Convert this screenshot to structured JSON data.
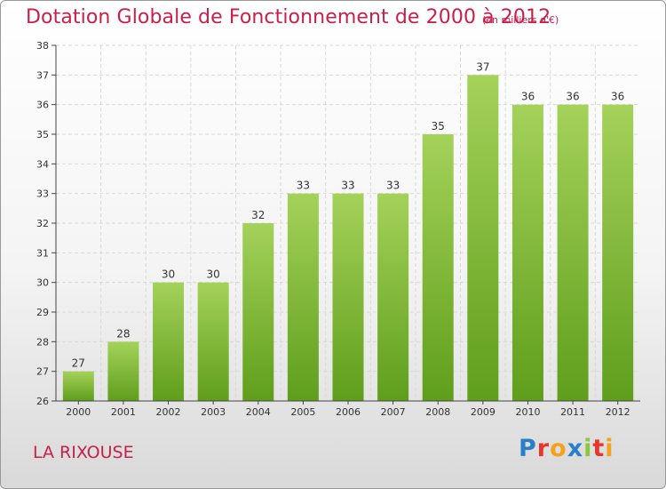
{
  "header": {
    "title": "Dotation Globale de Fonctionnement de 2000 à 2012",
    "subtitle": "(en milliers d'€)"
  },
  "footer": {
    "commune": "LA RIXOUSE",
    "logo_text": "Proxiti",
    "logo_letters": [
      {
        "char": "P",
        "color": "#2a7fc8"
      },
      {
        "char": "r",
        "color": "#e8362c"
      },
      {
        "char": "o",
        "color": "#f4a11d"
      },
      {
        "char": "x",
        "color": "#2a7fc8"
      },
      {
        "char": "i",
        "color": "#8dc63f"
      },
      {
        "char": "t",
        "color": "#e8362c"
      },
      {
        "char": "i",
        "color": "#f4a11d"
      }
    ]
  },
  "colors": {
    "accent": "#c8204a",
    "bar_top": "#a4d25a",
    "bar_bottom": "#5f9e1c",
    "grid": "#d9d9d9",
    "axis": "#444444"
  },
  "chart_data": {
    "type": "bar",
    "categories": [
      "2000",
      "2001",
      "2002",
      "2003",
      "2004",
      "2005",
      "2006",
      "2007",
      "2008",
      "2009",
      "2010",
      "2011",
      "2012"
    ],
    "values": [
      27,
      28,
      30,
      30,
      32,
      33,
      33,
      33,
      35,
      37,
      36,
      36,
      36
    ],
    "ylim": [
      26,
      38
    ],
    "yticks": [
      26,
      27,
      28,
      29,
      30,
      31,
      32,
      33,
      34,
      35,
      36,
      37,
      38
    ],
    "grid": true,
    "data_labels": true
  }
}
